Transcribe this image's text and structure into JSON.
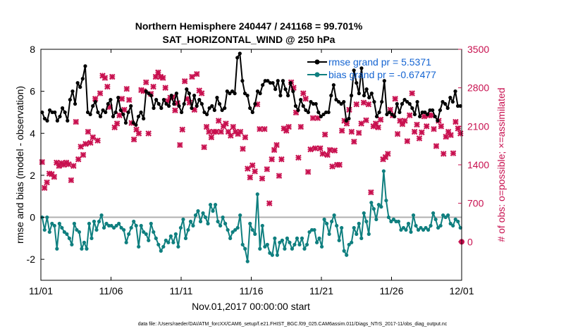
{
  "chart_data": {
    "type": "line",
    "title": "Northern Hemisphere 240447 / 241168 = 99.701%",
    "subtitle": "SAT_HORIZONTAL_WIND @ 250 hPa",
    "xlabel": "Nov.01,2017 00:00:00 start",
    "ylabel": "rmse and bias (model - observation)",
    "y2label": "# of obs: o=possible; ×=assimilated",
    "footnote": "data file: /Users/raeder/DAI/ATM_forcXX/CAM6_setup/f.e21.FHIST_BGC.f09_025.CAM6assim.011/Diags_NTrS_2017-11/obs_diag_output.nc",
    "x_ticks": [
      "11/01",
      "11/06",
      "11/11",
      "11/16",
      "11/21",
      "11/26",
      "12/01"
    ],
    "x_range_days": [
      0,
      30
    ],
    "y_ticks": [
      "-2",
      "0",
      "2",
      "4",
      "6",
      "8"
    ],
    "ylim": [
      -3,
      8
    ],
    "y2_ticks": [
      "0",
      "700",
      "1400",
      "2100",
      "2800",
      "3500"
    ],
    "y2lim": [
      -700,
      3500
    ],
    "legend_position": "top-right",
    "grid": false,
    "zero_line": 0,
    "colors": {
      "rmse": "#000000",
      "bias": "#0f7f7f",
      "nobs": "#c8104f",
      "legend_text": "#1464d2"
    },
    "series": [
      {
        "name": "rmse grand pr = 5.5371",
        "values": [
          5.0,
          4.7,
          4.6,
          5.1,
          5.0,
          5.0,
          4.6,
          4.8,
          5.2,
          5.0,
          4.6,
          5.6,
          6.0,
          5.4,
          6.4,
          6.2,
          6.6,
          7.2,
          5.0,
          4.9,
          5.3,
          5.5,
          5.0,
          4.8,
          5.1,
          5.0,
          5.4,
          5.6,
          4.8,
          5.0,
          5.7,
          5.1,
          4.9,
          4.5,
          5.0,
          5.3,
          4.5,
          4.4,
          4.8,
          5.0,
          4.7,
          6.0,
          5.9,
          5.8,
          5.2,
          5.6,
          5.4,
          5.2,
          5.6,
          5.4,
          5.3,
          5.8,
          5.4,
          5.9,
          5.3,
          5.0,
          5.4,
          6.1,
          5.9,
          5.2,
          5.8,
          5.3,
          5.6,
          5.4,
          5.0,
          4.9,
          5.2,
          5.3,
          5.1,
          5.7,
          5.4,
          5.1,
          5.2,
          6.0,
          5.9,
          6.0,
          5.9,
          7.6,
          7.8,
          6.5,
          5.9,
          5.8,
          5.2,
          5.0,
          5.4,
          6.0,
          5.9,
          6.3,
          6.5,
          6.5,
          6.4,
          6.4,
          6.1,
          6.5,
          5.8,
          6.5,
          6.1,
          5.8,
          6.4,
          6.0,
          5.3,
          5.1,
          5.6,
          5.3,
          5.1,
          5.0,
          5.5,
          5.4,
          5.4,
          5.0,
          4.8,
          4.9,
          5.0,
          5.0,
          5.8,
          6.3,
          5.6,
          5.5,
          5.4,
          5.5,
          4.6,
          4.7,
          5.8,
          7.0,
          6.4,
          5.9,
          7.1,
          5.8,
          6.1,
          5.7,
          5.9,
          5.5,
          4.8,
          5.0,
          5.5,
          6.5,
          4.9,
          5.0,
          4.9,
          4.8,
          5.4,
          5.0,
          5.4,
          5.6,
          5.5,
          5.4,
          5.2,
          4.9,
          5.5,
          4.8,
          5.0,
          5.0,
          4.9,
          5.1,
          5.1,
          4.8,
          4.6,
          5.1,
          5.5,
          5.4,
          5.2,
          5.7,
          5.5,
          6.0,
          5.3,
          5.3
        ]
      },
      {
        "name": "bias grand pr = -0.67477",
        "values": [
          0.0,
          -0.6,
          0.0,
          -0.7,
          -0.3,
          -0.4,
          -1.5,
          -0.3,
          -0.5,
          -0.7,
          -0.8,
          -1.0,
          -1.3,
          -0.3,
          -0.6,
          -0.7,
          -1.5,
          -1.2,
          -1.5,
          -0.3,
          -1.0,
          -0.2,
          -0.6,
          -0.2,
          0.1,
          -0.5,
          -0.3,
          -0.4,
          -0.4,
          -0.5,
          -0.4,
          -0.3,
          -0.5,
          -0.6,
          -1.2,
          -0.8,
          -0.5,
          -0.2,
          -0.4,
          -1.4,
          -0.4,
          -0.7,
          -0.8,
          -1.1,
          -0.3,
          -0.7,
          -1.0,
          -1.3,
          -1.6,
          -1.4,
          -1.1,
          -1.2,
          -0.9,
          -1.2,
          -0.8,
          -1.4,
          -0.5,
          -0.1,
          -1.0,
          -0.6,
          -0.2,
          -0.4,
          0.1,
          0.3,
          -0.2,
          0.2,
          0.0,
          -0.3,
          0.6,
          0.3,
          0.6,
          -0.2,
          -0.4,
          0.0,
          -0.3,
          -0.6,
          -1.0,
          -0.7,
          -0.6,
          -0.5,
          0.1,
          -1.3,
          -1.5,
          -2.1,
          -0.3,
          -0.6,
          -0.8,
          1.1,
          -1.5,
          -0.4,
          -1.4,
          -1.3,
          -1.7,
          -1.8,
          -1.0,
          -1.8,
          -1.2,
          -1.1,
          -1.5,
          -1.0,
          -1.2,
          -1.5,
          -1.3,
          -1.0,
          -1.3,
          -1.0,
          -1.5,
          -1.3,
          -0.7,
          -0.6,
          -0.6,
          -1.2,
          -1.0,
          -1.4,
          -0.1,
          -0.3,
          -0.8,
          -0.2,
          0.1,
          -0.4,
          -1.1,
          -0.5,
          -1.6,
          -1.8,
          -1.3,
          -1.2,
          -0.5,
          -0.8,
          -0.3,
          -1.0,
          0.2,
          -0.2,
          -0.8,
          0.7,
          0.4,
          -0.1,
          0.6,
          0.5,
          2.2,
          0.8,
          0.0,
          -0.2,
          -0.1,
          -0.2,
          -0.2,
          -0.6,
          -0.5,
          -0.6,
          -0.3,
          -0.7,
          0.1,
          -0.4,
          -0.6,
          -0.5,
          -0.6,
          -0.5,
          -0.6,
          -0.4,
          0.2,
          -0.1,
          -0.5,
          -0.4,
          0.1,
          0.0,
          0.1,
          -0.3,
          -0.4,
          -0.1,
          -0.2,
          -0.5
        ]
      },
      {
        "name": "# of obs assimilated",
        "values": [
          1450,
          980,
          1080,
          1240,
          1230,
          1180,
          1440,
          1380,
          1430,
          1400,
          1440,
          1410,
          1120,
          1380,
          2180,
          1500,
          1730,
          1580,
          1780,
          2000,
          1800,
          1900,
          2600,
          1840,
          2700,
          3020,
          2980,
          2820,
          2450,
          3000,
          2080,
          2150,
          2300,
          2600,
          2400,
          2780,
          2580,
          2160,
          1860,
          2040,
          1970,
          2760,
          2740,
          2900,
          1970,
          2690,
          2820,
          3000,
          3080,
          3000,
          2980,
          2800,
          2560,
          2620,
          2630,
          2390,
          2520,
          1760,
          2040,
          2920,
          2600,
          2530,
          3000,
          2400,
          3050,
          2750,
          2700,
          1720,
          2090,
          2000,
          1900,
          2000,
          2000,
          2200,
          2000,
          2100,
          2150,
          2000,
          1930,
          2090,
          2000,
          1960,
          2000,
          1690,
          1900,
          1330,
          1170,
          1390,
          1280,
          2500,
          2050,
          1150,
          2050,
          1320,
          700,
          1500,
          1670,
          1760,
          1200,
          1500,
          2060,
          2020,
          2090,
          2900,
          2800,
          2350,
          1530,
          2090,
          2700,
          2600,
          1270,
          1680,
          2250,
          1700,
          2250,
          1700,
          1600,
          1950,
          1580,
          1670,
          1370,
          1660,
          1400,
          1400,
          2020,
          2200,
          2150,
          2400,
          2000,
          1820,
          2500,
          1980,
          2150,
          2530,
          2210,
          2500,
          900,
          2100,
          2150,
          2080,
          2220,
          1500,
          1540,
          1600,
          2400,
          2300,
          2600,
          1960,
          2200,
          2140,
          2200,
          1830,
          2300,
          2700,
          2000,
          2130,
          1880,
          1990,
          2280,
          2100,
          2300,
          2300,
          2050,
          1740,
          2200,
          2100,
          1600,
          1910,
          2000,
          1940,
          1610,
          2180,
          2060,
          1970
        ]
      },
      {
        "name": "# of obs possible",
        "values": [
          0
        ]
      }
    ]
  }
}
